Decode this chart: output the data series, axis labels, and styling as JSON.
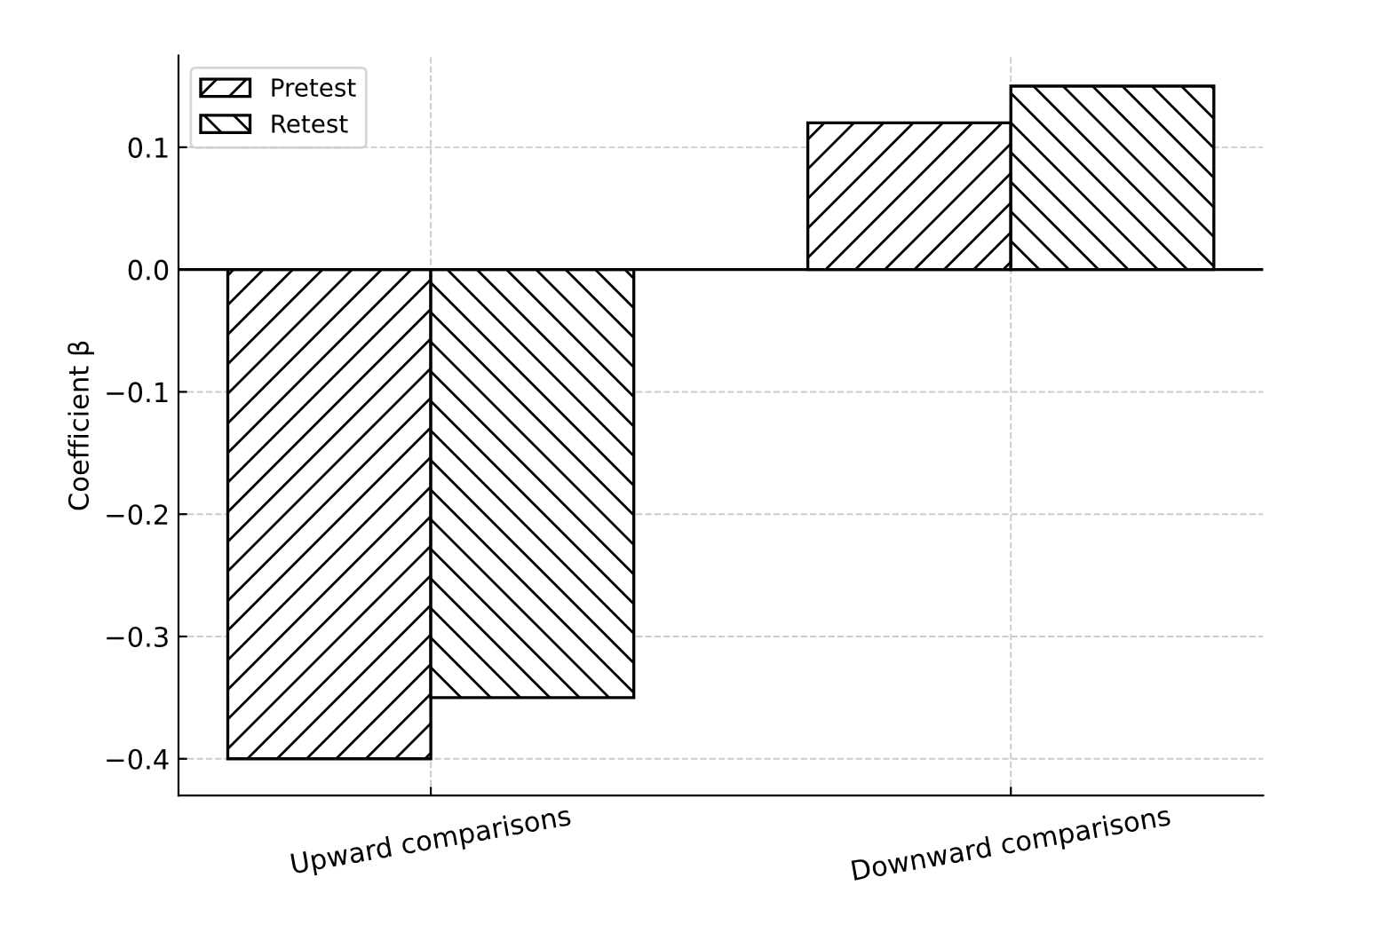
{
  "chart_data": {
    "type": "bar",
    "ylabel": "Coefficient β",
    "categories": [
      "Upward comparisons",
      "Downward comparisons"
    ],
    "series": [
      {
        "name": "Pretest",
        "color": "#000000",
        "values": [
          -0.4,
          0.12
        ]
      },
      {
        "name": "Retest",
        "color": "#000000",
        "values": [
          -0.35,
          0.15
        ]
      }
    ],
    "ylim": [
      -0.43,
      0.175
    ],
    "yticks": [
      {
        "value": -0.4,
        "label": "−0.4"
      },
      {
        "value": -0.3,
        "label": "−0.3"
      },
      {
        "value": -0.2,
        "label": "−0.2"
      },
      {
        "value": -0.1,
        "label": "−0.1"
      },
      {
        "value": 0.0,
        "label": "0.0"
      },
      {
        "value": 0.1,
        "label": "0.1"
      }
    ],
    "ref_lines": [
      {
        "axis": "y",
        "value": 0,
        "color": "#000000"
      }
    ],
    "grid": true,
    "legend": "top left"
  }
}
